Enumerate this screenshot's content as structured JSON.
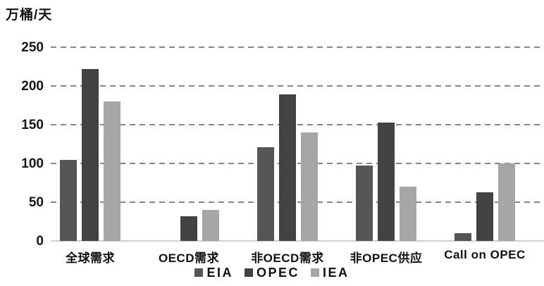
{
  "chart_data": {
    "type": "bar",
    "title": "",
    "ylabel": "万桶/天",
    "xlabel": "",
    "categories": [
      "全球需求",
      "OECD需求",
      "非OECD需求",
      "非OPEC供应",
      "Call on OPEC"
    ],
    "series": [
      {
        "name": "EIA",
        "color": "#565656",
        "values": [
          105,
          0,
          121,
          97,
          10
        ]
      },
      {
        "name": "OPEC",
        "color": "#424242",
        "values": [
          222,
          32,
          189,
          153,
          63
        ]
      },
      {
        "name": "IEA",
        "color": "#a6a6a6",
        "values": [
          180,
          40,
          140,
          70,
          100
        ]
      }
    ],
    "ylim": [
      0,
      250
    ],
    "yticks": [
      0,
      50,
      100,
      150,
      200,
      250
    ],
    "grid": "horizontal-dashed",
    "gridline_color": "#868686",
    "baseline_color": "#cfcfcf",
    "legend_position": "bottom"
  }
}
